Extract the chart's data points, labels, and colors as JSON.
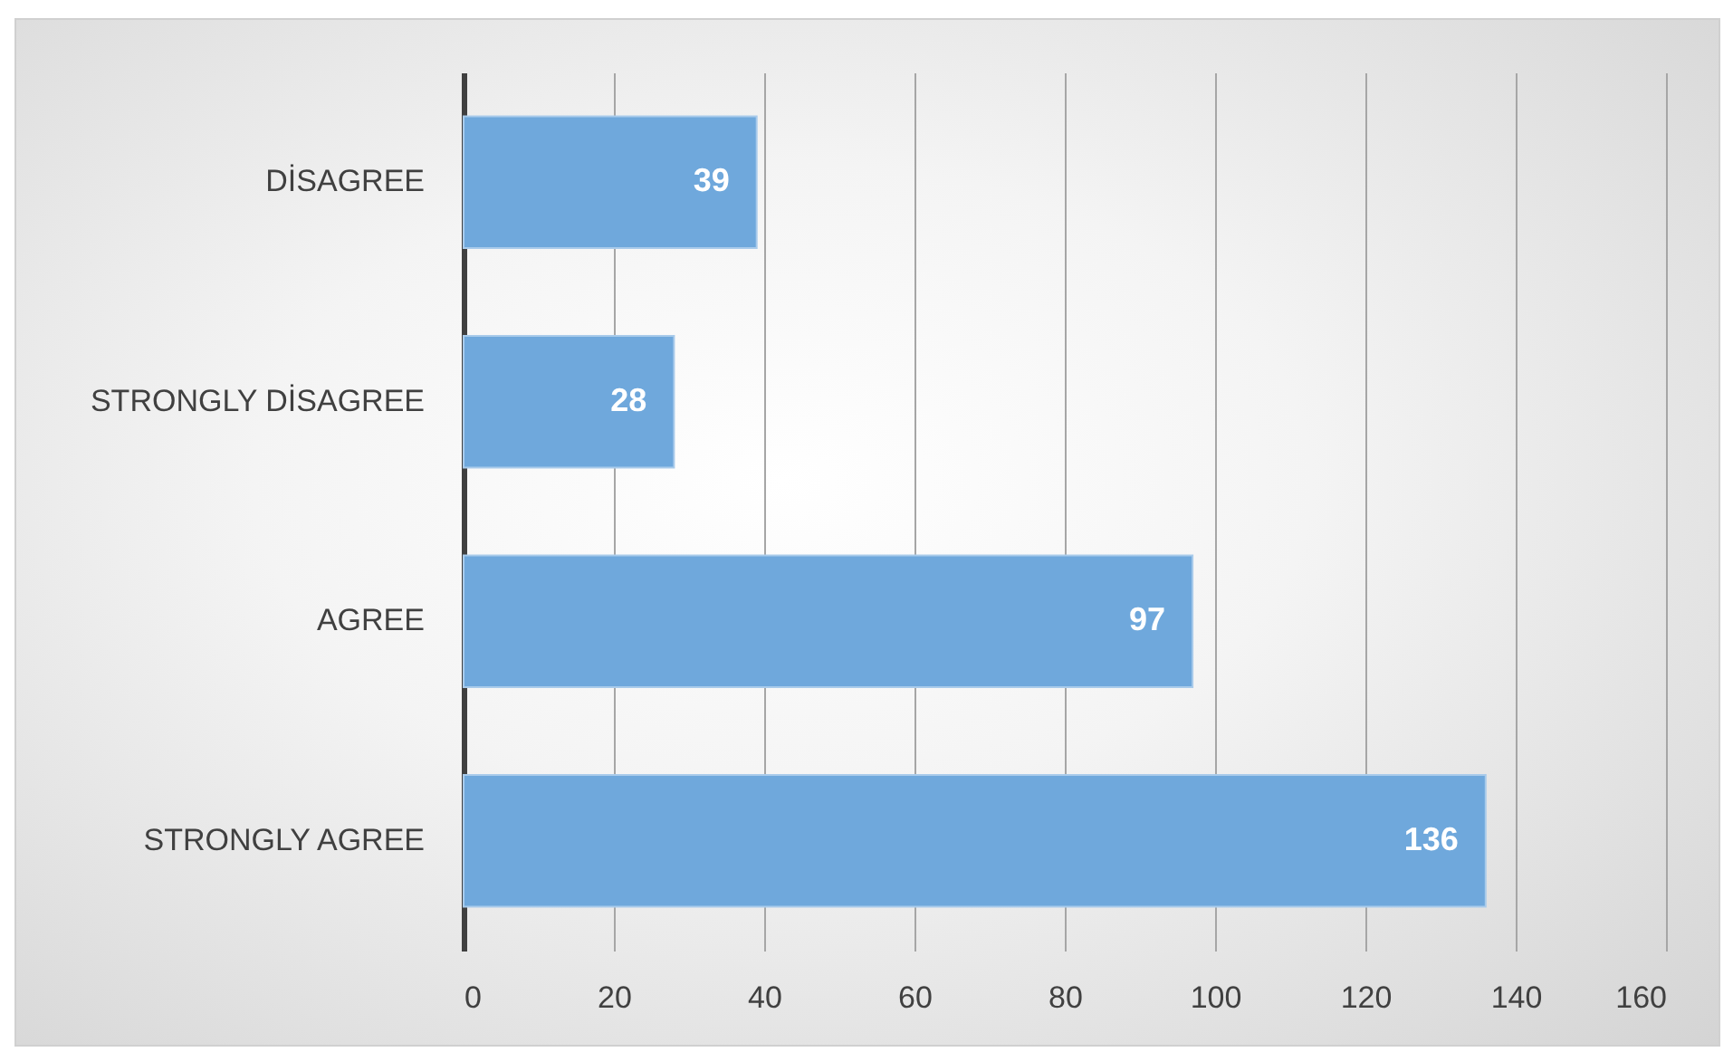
{
  "chart_data": {
    "type": "bar",
    "orientation": "horizontal",
    "categories": [
      "DİSAGREE",
      "STRONGLY DİSAGREE",
      "AGREE",
      "STRONGLY AGREE"
    ],
    "values": [
      39,
      28,
      97,
      136
    ],
    "color": "#6fa8dc",
    "xlim": [
      0,
      160
    ],
    "xticks": [
      0,
      20,
      40,
      60,
      80,
      100,
      120,
      140,
      160
    ],
    "grid": "x",
    "data_labels": true
  }
}
